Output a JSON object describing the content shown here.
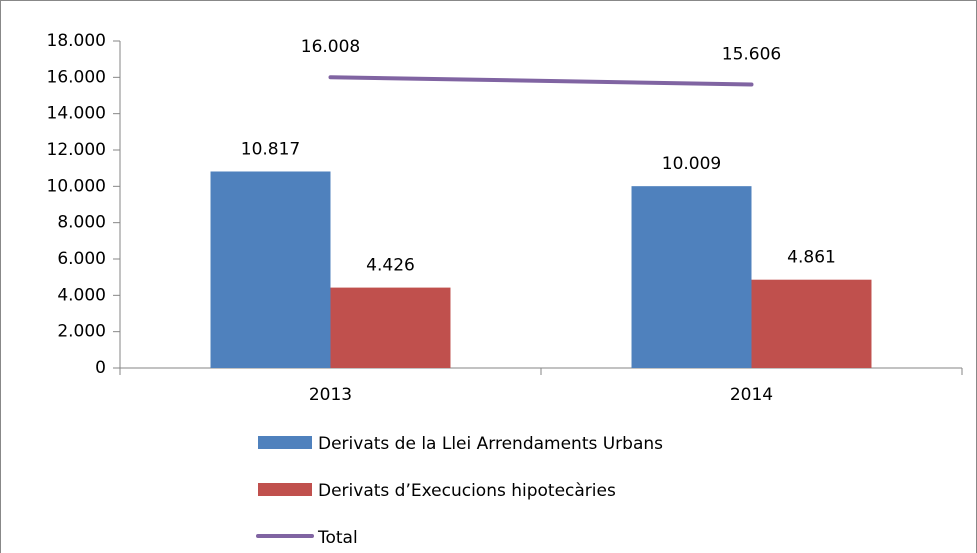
{
  "chart_data": {
    "type": "bar",
    "categories": [
      "2013",
      "2014"
    ],
    "series": [
      {
        "name": "Derivats de la Llei Arrendaments Urbans",
        "color": "#4f81bd",
        "values": [
          10817,
          10009
        ],
        "value_labels": [
          "10.817",
          "10.009"
        ]
      },
      {
        "name": "Derivats d’Execucions hipotecàries",
        "color": "#c0504d",
        "values": [
          4426,
          4861
        ],
        "value_labels": [
          "4.426",
          "4.861"
        ]
      },
      {
        "name": "Total",
        "type": "line",
        "color": "#8064a2",
        "values": [
          16008,
          15606
        ],
        "value_labels": [
          "16.008",
          "15.606"
        ]
      }
    ],
    "ylim": [
      0,
      18000
    ],
    "yticks": [
      0,
      {
        "value": 2000,
        "label": "2.000"
      },
      {
        "value": 4000,
        "label": "4.000"
      },
      {
        "value": 6000,
        "label": "6.000"
      },
      {
        "value": 8000,
        "label": "8.000"
      },
      {
        "value": 10000,
        "label": "10.000"
      },
      {
        "value": 12000,
        "label": "12.000"
      },
      {
        "value": 14000,
        "label": "14.000"
      },
      {
        "value": 16000,
        "label": "16.000"
      },
      {
        "value": 18000,
        "label": "18.000"
      }
    ],
    "grid": false,
    "legend": "bottom"
  }
}
